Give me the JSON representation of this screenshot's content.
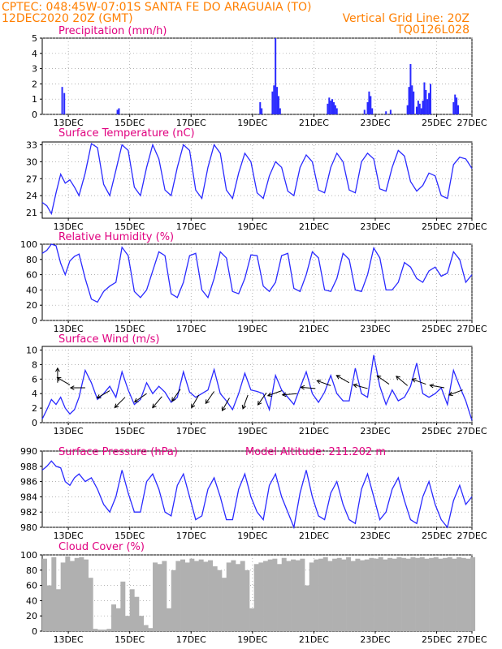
{
  "header": {
    "line1": "CPTEC:   048:45W-07:01S  SANTA FE DO ARAGUAIA (TO)",
    "date": "12DEC2020 20Z (GMT)",
    "grid_note": "Vertical Grid Line: 20Z",
    "code": "TQ0126L028"
  },
  "colors": {
    "header": "#ff7f00",
    "title": "#e0007f",
    "series": "#2a2aff",
    "cloud": "#b0b0b0",
    "axis": "#000000"
  },
  "x_ticks": [
    "13DEC",
    "15DEC",
    "17DEC",
    "19DEC",
    "21DEC",
    "23DEC",
    "25DEC",
    "27DEC"
  ],
  "chart_data": [
    {
      "type": "bar",
      "title": "Precipitation (mm/h)",
      "ylim": [
        0,
        5
      ],
      "yticks": [
        0,
        1,
        2,
        3,
        4,
        5
      ],
      "bars": [
        [
          0.65,
          1.8
        ],
        [
          0.72,
          1.4
        ],
        [
          2.45,
          0.3
        ],
        [
          2.5,
          0.4
        ],
        [
          7.1,
          0.8
        ],
        [
          7.15,
          0.4
        ],
        [
          7.5,
          1.5
        ],
        [
          7.55,
          1.9
        ],
        [
          7.6,
          5.0
        ],
        [
          7.65,
          1.8
        ],
        [
          7.7,
          1.2
        ],
        [
          7.75,
          0.4
        ],
        [
          9.3,
          0.7
        ],
        [
          9.35,
          1.1
        ],
        [
          9.4,
          0.9
        ],
        [
          9.45,
          1.0
        ],
        [
          9.5,
          0.8
        ],
        [
          9.55,
          0.6
        ],
        [
          9.6,
          0.4
        ],
        [
          10.5,
          0.3
        ],
        [
          10.6,
          0.8
        ],
        [
          10.65,
          1.5
        ],
        [
          10.7,
          1.2
        ],
        [
          10.75,
          0.4
        ],
        [
          11.2,
          0.2
        ],
        [
          11.35,
          0.3
        ],
        [
          11.9,
          0.6
        ],
        [
          11.95,
          1.8
        ],
        [
          12.0,
          3.3
        ],
        [
          12.05,
          1.9
        ],
        [
          12.1,
          1.5
        ],
        [
          12.2,
          0.5
        ],
        [
          12.25,
          0.9
        ],
        [
          12.3,
          0.7
        ],
        [
          12.35,
          0.4
        ],
        [
          12.4,
          0.9
        ],
        [
          12.45,
          2.1
        ],
        [
          12.5,
          1.6
        ],
        [
          12.55,
          1.0
        ],
        [
          12.6,
          1.4
        ],
        [
          12.65,
          2.0
        ],
        [
          13.4,
          0.8
        ],
        [
          13.45,
          1.3
        ],
        [
          13.5,
          1.1
        ],
        [
          13.55,
          0.6
        ]
      ],
      "annotation": ""
    },
    {
      "type": "line",
      "title": "Surface Temperature (nC)",
      "ylim": [
        20,
        33.5
      ],
      "yticks": [
        21,
        24,
        27,
        30,
        33
      ],
      "x": [
        0,
        0.15,
        0.3,
        0.45,
        0.6,
        0.75,
        0.9,
        1.05,
        1.2,
        1.4,
        1.6,
        1.8,
        2.0,
        2.2,
        2.4,
        2.6,
        2.8,
        3.0,
        3.2,
        3.4,
        3.6,
        3.8,
        4.0,
        4.2,
        4.4,
        4.6,
        4.8,
        5.0,
        5.2,
        5.4,
        5.6,
        5.8,
        6.0,
        6.2,
        6.4,
        6.6,
        6.8,
        7.0,
        7.2,
        7.4,
        7.6,
        7.8,
        8.0,
        8.2,
        8.4,
        8.6,
        8.8,
        9.0,
        9.2,
        9.4,
        9.6,
        9.8,
        10.0,
        10.2,
        10.4,
        10.6,
        10.8,
        11.0,
        11.2,
        11.4,
        11.6,
        11.8,
        12.0,
        12.2,
        12.4,
        12.6,
        12.8,
        13.0,
        13.2,
        13.4,
        13.6,
        13.8,
        14.0
      ],
      "y": [
        22.8,
        22.2,
        20.8,
        24.5,
        27.8,
        26.2,
        26.8,
        25.5,
        24.0,
        28.0,
        33.2,
        32.5,
        26.0,
        24.0,
        28.5,
        33.0,
        32.0,
        25.5,
        24.0,
        29.0,
        33.0,
        30.5,
        25.0,
        24.0,
        29.0,
        33.0,
        32.0,
        25.0,
        23.5,
        29.0,
        33.0,
        31.5,
        25.0,
        23.5,
        28.0,
        31.5,
        30.0,
        24.5,
        23.5,
        27.5,
        30.0,
        29.0,
        24.8,
        24.0,
        29.0,
        31.2,
        30.0,
        25.0,
        24.5,
        29.0,
        31.5,
        30.0,
        25.0,
        24.5,
        30.0,
        31.5,
        30.5,
        25.2,
        24.8,
        29.0,
        32.0,
        31.0,
        26.5,
        24.8,
        25.8,
        28.0,
        27.5,
        24.0,
        23.5,
        29.5,
        30.8,
        30.5,
        28.8
      ],
      "annotation": ""
    },
    {
      "type": "line",
      "title": "Relative Humidity (%)",
      "ylim": [
        0,
        100
      ],
      "yticks": [
        0,
        20,
        40,
        60,
        80,
        100
      ],
      "x": [
        0,
        0.15,
        0.3,
        0.45,
        0.6,
        0.75,
        0.9,
        1.05,
        1.2,
        1.4,
        1.6,
        1.8,
        2.0,
        2.2,
        2.4,
        2.6,
        2.8,
        3.0,
        3.2,
        3.4,
        3.6,
        3.8,
        4.0,
        4.2,
        4.4,
        4.6,
        4.8,
        5.0,
        5.2,
        5.4,
        5.6,
        5.8,
        6.0,
        6.2,
        6.4,
        6.6,
        6.8,
        7.0,
        7.2,
        7.4,
        7.6,
        7.8,
        8.0,
        8.2,
        8.4,
        8.6,
        8.8,
        9.0,
        9.2,
        9.4,
        9.6,
        9.8,
        10.0,
        10.2,
        10.4,
        10.6,
        10.8,
        11.0,
        11.2,
        11.4,
        11.6,
        11.8,
        12.0,
        12.2,
        12.4,
        12.6,
        12.8,
        13.0,
        13.2,
        13.4,
        13.6,
        13.8,
        14.0
      ],
      "y": [
        88,
        92,
        100,
        98,
        75,
        60,
        78,
        84,
        87,
        55,
        28,
        24,
        38,
        45,
        50,
        96,
        85,
        38,
        30,
        40,
        65,
        90,
        85,
        35,
        30,
        50,
        85,
        88,
        40,
        30,
        55,
        90,
        82,
        38,
        35,
        55,
        86,
        85,
        45,
        38,
        50,
        85,
        88,
        42,
        38,
        60,
        90,
        82,
        40,
        38,
        55,
        88,
        80,
        40,
        38,
        60,
        95,
        82,
        40,
        40,
        50,
        76,
        70,
        55,
        50,
        65,
        70,
        58,
        62,
        90,
        80,
        50,
        60
      ],
      "annotation": ""
    },
    {
      "type": "line",
      "title": "Surface Wind (m/s)",
      "ylim": [
        0,
        10.5
      ],
      "yticks": [
        0,
        2,
        4,
        6,
        8,
        10
      ],
      "x": [
        0,
        0.15,
        0.3,
        0.45,
        0.6,
        0.75,
        0.9,
        1.05,
        1.2,
        1.4,
        1.6,
        1.8,
        2.0,
        2.2,
        2.4,
        2.6,
        2.8,
        3.0,
        3.2,
        3.4,
        3.6,
        3.8,
        4.0,
        4.2,
        4.4,
        4.6,
        4.8,
        5.0,
        5.2,
        5.4,
        5.6,
        5.8,
        6.0,
        6.2,
        6.4,
        6.6,
        6.8,
        7.0,
        7.2,
        7.4,
        7.6,
        7.8,
        8.0,
        8.2,
        8.4,
        8.6,
        8.8,
        9.0,
        9.2,
        9.4,
        9.6,
        9.8,
        10.0,
        10.2,
        10.4,
        10.6,
        10.8,
        11.0,
        11.2,
        11.4,
        11.6,
        11.8,
        12.0,
        12.2,
        12.4,
        12.6,
        12.8,
        13.0,
        13.2,
        13.4,
        13.6,
        13.8,
        14.0
      ],
      "y": [
        0.5,
        1.8,
        3.2,
        2.5,
        3.5,
        2.0,
        1.2,
        1.8,
        3.5,
        7.2,
        5.5,
        3.2,
        4.0,
        5.0,
        3.5,
        7.0,
        4.5,
        2.5,
        3.2,
        5.5,
        4.0,
        5.0,
        4.2,
        2.8,
        3.5,
        7.0,
        4.2,
        3.5,
        4.0,
        4.5,
        7.3,
        4.0,
        3.0,
        1.8,
        4.0,
        6.8,
        4.5,
        4.3,
        4.0,
        1.8,
        6.5,
        4.5,
        3.5,
        2.5,
        4.8,
        7.0,
        4.0,
        2.8,
        4.2,
        6.5,
        4.0,
        3.0,
        3.0,
        7.5,
        4.0,
        3.5,
        9.3,
        5.0,
        2.5,
        4.5,
        3.0,
        3.5,
        5.0,
        8.2,
        4.0,
        3.5,
        4.0,
        4.8,
        2.5,
        7.2,
        5.0,
        3.0,
        0.3
      ],
      "arrows": [
        [
          0.5,
          5.5,
          90
        ],
        [
          0.9,
          5.2,
          150
        ],
        [
          1.4,
          4.8,
          180
        ],
        [
          2.2,
          4.4,
          210
        ],
        [
          2.7,
          3.5,
          225
        ],
        [
          3.4,
          4.0,
          215
        ],
        [
          3.9,
          3.6,
          230
        ],
        [
          4.5,
          4.6,
          235
        ],
        [
          5.1,
          3.8,
          240
        ],
        [
          5.6,
          4.3,
          235
        ],
        [
          6.1,
          3.4,
          240
        ],
        [
          6.7,
          3.8,
          250
        ],
        [
          7.3,
          4.1,
          235
        ],
        [
          7.8,
          4.4,
          200
        ],
        [
          8.3,
          4.0,
          185
        ],
        [
          8.9,
          4.7,
          175
        ],
        [
          9.4,
          5.1,
          160
        ],
        [
          10.0,
          5.5,
          150
        ],
        [
          10.6,
          4.7,
          165
        ],
        [
          11.3,
          5.3,
          145
        ],
        [
          11.9,
          5.1,
          140
        ],
        [
          12.5,
          5.3,
          160
        ],
        [
          13.1,
          4.8,
          170
        ],
        [
          13.7,
          4.5,
          200
        ]
      ],
      "annotation": ""
    },
    {
      "type": "line",
      "title": "Surface Pressure (hPa)",
      "ylim": [
        980,
        990
      ],
      "yticks": [
        980,
        982,
        984,
        986,
        988,
        990
      ],
      "x": [
        0,
        0.15,
        0.3,
        0.45,
        0.6,
        0.75,
        0.9,
        1.05,
        1.2,
        1.4,
        1.6,
        1.8,
        2.0,
        2.2,
        2.4,
        2.6,
        2.8,
        3.0,
        3.2,
        3.4,
        3.6,
        3.8,
        4.0,
        4.2,
        4.4,
        4.6,
        4.8,
        5.0,
        5.2,
        5.4,
        5.6,
        5.8,
        6.0,
        6.2,
        6.4,
        6.6,
        6.8,
        7.0,
        7.2,
        7.4,
        7.6,
        7.8,
        8.0,
        8.2,
        8.4,
        8.6,
        8.8,
        9.0,
        9.2,
        9.4,
        9.6,
        9.8,
        10.0,
        10.2,
        10.4,
        10.6,
        10.8,
        11.0,
        11.2,
        11.4,
        11.6,
        11.8,
        12.0,
        12.2,
        12.4,
        12.6,
        12.8,
        13.0,
        13.2,
        13.4,
        13.6,
        13.8,
        14.0
      ],
      "y": [
        987.5,
        988.0,
        988.7,
        988.0,
        987.8,
        986.0,
        985.5,
        986.5,
        987.0,
        986.0,
        986.5,
        985.0,
        983.0,
        982.0,
        984.0,
        987.5,
        984.5,
        982.0,
        982.0,
        986.0,
        987.0,
        985.0,
        982.0,
        981.5,
        985.5,
        987.0,
        984.0,
        981.0,
        981.5,
        985.0,
        986.5,
        984.0,
        981.0,
        981.0,
        985.0,
        987.0,
        984.0,
        982.0,
        981.0,
        985.5,
        987.0,
        984.0,
        982.0,
        980.0,
        984.5,
        987.5,
        984.0,
        981.5,
        981.0,
        984.5,
        986.0,
        983.0,
        981.0,
        980.5,
        985.0,
        987.0,
        984.0,
        981.0,
        982.0,
        985.0,
        986.5,
        983.5,
        981.0,
        980.5,
        984.0,
        986.0,
        983.0,
        981.0,
        980.0,
        983.5,
        985.5,
        983.0,
        984.0
      ],
      "annotation": "Model Altitude: 211.202 m"
    },
    {
      "type": "bar",
      "title": "Cloud Cover (%)",
      "ylim": [
        0,
        100
      ],
      "yticks": [
        0,
        20,
        40,
        60,
        80,
        100
      ],
      "x": [
        0,
        0.15,
        0.3,
        0.45,
        0.6,
        0.75,
        0.9,
        1.05,
        1.2,
        1.35,
        1.5,
        1.65,
        1.8,
        1.95,
        2.1,
        2.25,
        2.4,
        2.55,
        2.7,
        2.85,
        3.0,
        3.15,
        3.3,
        3.45,
        3.6,
        3.75,
        3.9,
        4.05,
        4.2,
        4.35,
        4.5,
        4.65,
        4.8,
        4.95,
        5.1,
        5.25,
        5.4,
        5.55,
        5.7,
        5.85,
        6.0,
        6.15,
        6.3,
        6.45,
        6.6,
        6.75,
        6.9,
        7.05,
        7.2,
        7.35,
        7.5,
        7.65,
        7.8,
        7.95,
        8.1,
        8.25,
        8.4,
        8.55,
        8.7,
        8.85,
        9.0,
        9.15,
        9.3,
        9.45,
        9.6,
        9.75,
        9.9,
        10.05,
        10.2,
        10.35,
        10.5,
        10.65,
        10.8,
        10.95,
        11.1,
        11.25,
        11.4,
        11.55,
        11.7,
        11.85,
        12.0,
        12.15,
        12.3,
        12.45,
        12.6,
        12.75,
        12.9,
        13.05,
        13.2,
        13.35,
        13.5,
        13.65,
        13.8,
        13.95
      ],
      "values": [
        95,
        60,
        97,
        55,
        90,
        98,
        92,
        96,
        97,
        94,
        70,
        3,
        2,
        2,
        3,
        35,
        30,
        65,
        20,
        55,
        45,
        20,
        8,
        4,
        90,
        88,
        92,
        30,
        80,
        92,
        94,
        90,
        95,
        92,
        94,
        91,
        93,
        85,
        80,
        70,
        90,
        93,
        88,
        92,
        80,
        30,
        88,
        90,
        92,
        94,
        95,
        88,
        96,
        92,
        94,
        93,
        95,
        60,
        90,
        94,
        95,
        97,
        92,
        95,
        96,
        94,
        97,
        92,
        95,
        93,
        94,
        96,
        95,
        97,
        94,
        96,
        95,
        97,
        96,
        95,
        97,
        96,
        97,
        95,
        96,
        97,
        95,
        96,
        97,
        95,
        97,
        96,
        95,
        97
      ],
      "annotation": ""
    }
  ]
}
